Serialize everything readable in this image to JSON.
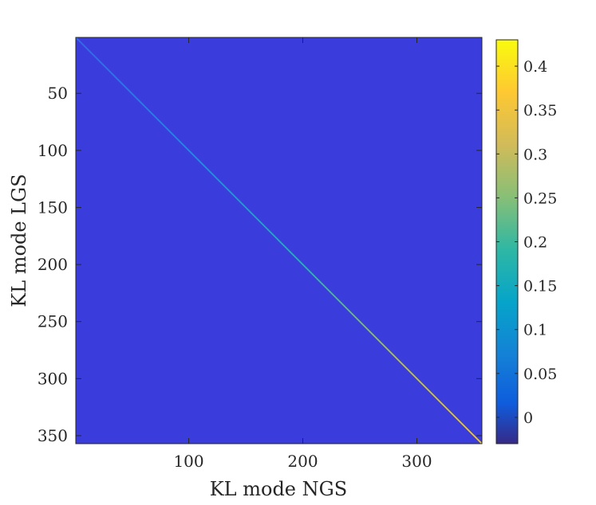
{
  "chart_data": {
    "type": "heatmap",
    "title": "",
    "xlabel": "KL mode NGS",
    "ylabel": "KL mode LGS",
    "x_range": [
      1,
      357
    ],
    "y_range": [
      1,
      357
    ],
    "y_direction": "reversed",
    "x_ticks": [
      100,
      200,
      300
    ],
    "y_ticks": [
      50,
      100,
      150,
      200,
      250,
      300,
      350
    ],
    "background_value": 0,
    "diagonal": [
      {
        "mode": 1,
        "value": 0.05
      },
      {
        "mode": 100,
        "value": 0.1
      },
      {
        "mode": 200,
        "value": 0.17
      },
      {
        "mode": 300,
        "value": 0.27
      },
      {
        "mode": 357,
        "value": 0.4
      }
    ],
    "colorbar": {
      "colormap": "parula",
      "limits": [
        -0.03,
        0.43
      ],
      "ticks": [
        "0",
        "0.05",
        "0.1",
        "0.15",
        "0.2",
        "0.25",
        "0.3",
        "0.35",
        "0.4"
      ],
      "tick_values": [
        0,
        0.05,
        0.1,
        0.15,
        0.2,
        0.25,
        0.3,
        0.35,
        0.4
      ]
    }
  }
}
